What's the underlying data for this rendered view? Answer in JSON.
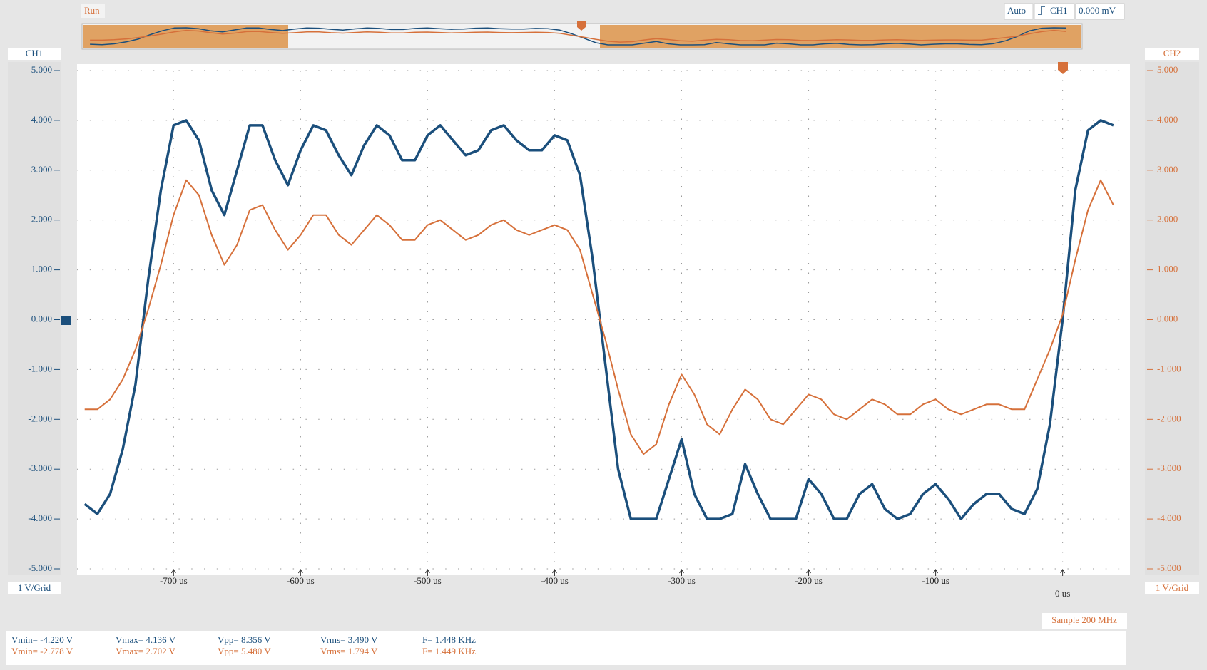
{
  "chart_data": {
    "type": "line",
    "x": [
      -770,
      -760,
      -750,
      -740,
      -730,
      -720,
      -710,
      -700,
      -690,
      -680,
      -670,
      -660,
      -650,
      -640,
      -630,
      -620,
      -610,
      -600,
      -590,
      -580,
      -570,
      -560,
      -550,
      -540,
      -530,
      -520,
      -510,
      -500,
      -490,
      -480,
      -470,
      -460,
      -450,
      -440,
      -430,
      -420,
      -410,
      -400,
      -390,
      -380,
      -370,
      -360,
      -350,
      -340,
      -330,
      -320,
      -310,
      -300,
      -290,
      -280,
      -270,
      -260,
      -250,
      -240,
      -230,
      -220,
      -210,
      -200,
      -190,
      -180,
      -170,
      -160,
      -150,
      -140,
      -130,
      -120,
      -110,
      -100,
      -90,
      -80,
      -70,
      -60,
      -50,
      -40,
      -30,
      -20,
      -10,
      0,
      10,
      20,
      30,
      40
    ],
    "series": [
      {
        "name": "CH1",
        "color": "#1b4f7c",
        "values": [
          -3.7,
          -3.9,
          -3.5,
          -2.6,
          -1.3,
          0.8,
          2.6,
          3.9,
          4.0,
          3.6,
          2.6,
          2.1,
          3.0,
          3.9,
          3.9,
          3.2,
          2.7,
          3.4,
          3.9,
          3.8,
          3.3,
          2.9,
          3.5,
          3.9,
          3.7,
          3.2,
          3.2,
          3.7,
          3.9,
          3.6,
          3.3,
          3.4,
          3.8,
          3.9,
          3.6,
          3.4,
          3.4,
          3.7,
          3.6,
          2.9,
          1.2,
          -0.9,
          -3.0,
          -4.0,
          -4.0,
          -4.0,
          -3.2,
          -2.4,
          -3.5,
          -4.0,
          -4.0,
          -3.9,
          -2.9,
          -3.5,
          -4.0,
          -4.0,
          -4.0,
          -3.2,
          -3.5,
          -4.0,
          -4.0,
          -3.5,
          -3.3,
          -3.8,
          -4.0,
          -3.9,
          -3.5,
          -3.3,
          -3.6,
          -4.0,
          -3.7,
          -3.5,
          -3.5,
          -3.8,
          -3.9,
          -3.4,
          -2.1,
          0.0,
          2.6,
          3.8,
          4.0,
          3.9
        ]
      },
      {
        "name": "CH2",
        "color": "#d6703a",
        "axis": "y2",
        "values": [
          -1.8,
          -1.8,
          -1.6,
          -1.2,
          -0.6,
          0.2,
          1.1,
          2.1,
          2.8,
          2.5,
          1.7,
          1.1,
          1.5,
          2.2,
          2.3,
          1.8,
          1.4,
          1.7,
          2.1,
          2.1,
          1.7,
          1.5,
          1.8,
          2.1,
          1.9,
          1.6,
          1.6,
          1.9,
          2.0,
          1.8,
          1.6,
          1.7,
          1.9,
          2.0,
          1.8,
          1.7,
          1.8,
          1.9,
          1.8,
          1.4,
          0.5,
          -0.4,
          -1.4,
          -2.3,
          -2.7,
          -2.5,
          -1.7,
          -1.1,
          -1.5,
          -2.1,
          -2.3,
          -1.8,
          -1.4,
          -1.6,
          -2.0,
          -2.1,
          -1.8,
          -1.5,
          -1.6,
          -1.9,
          -2.0,
          -1.8,
          -1.6,
          -1.7,
          -1.9,
          -1.9,
          -1.7,
          -1.6,
          -1.8,
          -1.9,
          -1.8,
          -1.7,
          -1.7,
          -1.8,
          -1.8,
          -1.2,
          -0.6,
          0.1,
          1.2,
          2.2,
          2.8,
          2.3
        ]
      }
    ],
    "xlim": [
      -776,
      53
    ],
    "xticks": [
      {
        "value": -700,
        "label": "-700 us"
      },
      {
        "value": -600,
        "label": "-600 us"
      },
      {
        "value": -500,
        "label": "-500 us"
      },
      {
        "value": -400,
        "label": "-400 us"
      },
      {
        "value": -300,
        "label": "-300 us"
      },
      {
        "value": -200,
        "label": "-200 us"
      },
      {
        "value": -100,
        "label": "-100 us"
      },
      {
        "value": 0,
        "label": "0 us"
      }
    ],
    "ylim": [
      -5,
      5
    ],
    "yticks": [
      {
        "value": 5,
        "label": "5.000"
      },
      {
        "value": 4,
        "label": "4.000"
      },
      {
        "value": 3,
        "label": "3.000"
      },
      {
        "value": 2,
        "label": "2.000"
      },
      {
        "value": 1,
        "label": "1.000"
      },
      {
        "value": 0,
        "label": "0.000"
      },
      {
        "value": -1,
        "label": "-1.000"
      },
      {
        "value": -2,
        "label": "-2.000"
      },
      {
        "value": -3,
        "label": "-3.000"
      },
      {
        "value": -4,
        "label": "-4.000"
      },
      {
        "value": -5,
        "label": "-5.000"
      }
    ],
    "y2lim": [
      -5,
      5
    ],
    "y2ticks": [
      {
        "value": 5,
        "label": "5.000"
      },
      {
        "value": 4,
        "label": "4.000"
      },
      {
        "value": 3,
        "label": "3.000"
      },
      {
        "value": 2,
        "label": "2.000"
      },
      {
        "value": 1,
        "label": "1.000"
      },
      {
        "value": 0,
        "label": "0.000"
      },
      {
        "value": -1,
        "label": "-1.000"
      },
      {
        "value": -2,
        "label": "-2.000"
      },
      {
        "value": -3,
        "label": "-3.000"
      },
      {
        "value": -4,
        "label": "-4.000"
      },
      {
        "value": -5,
        "label": "-5.000"
      }
    ],
    "grid": true
  },
  "toolbar": {
    "status": "Run",
    "trigger_mode": "Auto",
    "trigger_source": "CH1",
    "trigger_level": "0.000 mV"
  },
  "left_axis": {
    "title": "CH1",
    "scale": "1 V/Grid"
  },
  "right_axis": {
    "title": "CH2",
    "scale": "1 V/Grid"
  },
  "sample_rate": "Sample 200 MHz",
  "measurements": {
    "ch1": [
      "Vmin= -4.220 V",
      "Vmax= 4.136 V",
      "Vpp= 8.356 V",
      "Vrms= 3.490 V",
      "F= 1.448 KHz"
    ],
    "ch2": [
      "Vmin= -2.778 V",
      "Vmax= 2.702 V",
      "Vpp= 5.480 V",
      "Vrms= 1.794 V",
      "F= 1.449 KHz"
    ]
  }
}
